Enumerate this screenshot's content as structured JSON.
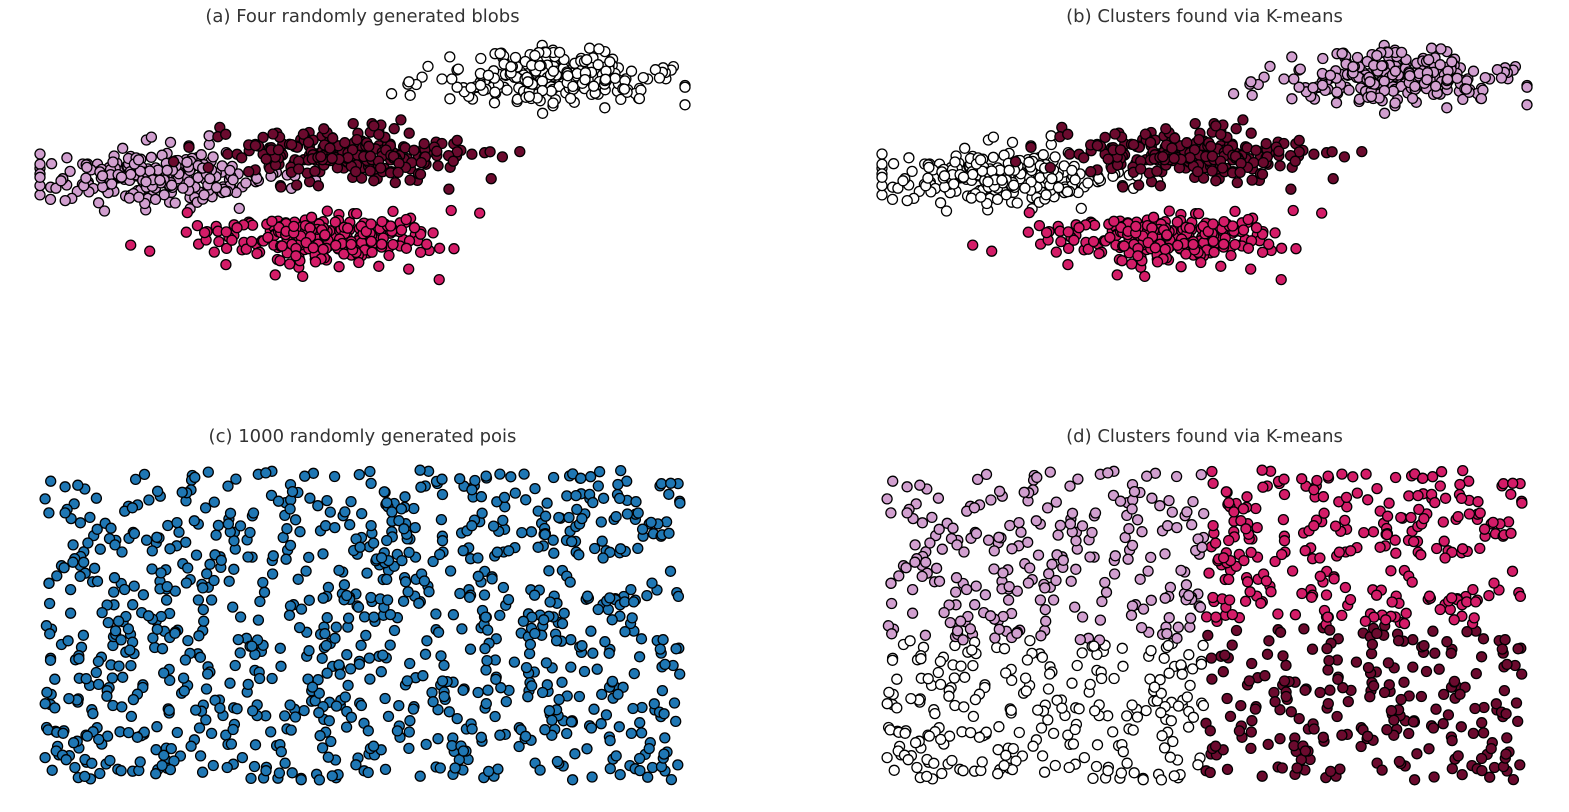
{
  "colors": {
    "white": "#ffffff",
    "pink": "#d19fcf",
    "maroon": "#6b0a2e",
    "magenta": "#d41c68",
    "blue": "#1f77b4",
    "edge": "#000000"
  },
  "chart_data": [
    {
      "type": "scatter",
      "title": "(a) Four randomly generated blobs",
      "grid": false,
      "axes_visible": false,
      "xlim": [
        -3,
        3
      ],
      "ylim": [
        -3,
        3
      ],
      "series": [
        {
          "color": "#ffffff",
          "center": [
            1.7,
            2.3
          ],
          "spread": [
            0.55,
            0.25
          ],
          "count": 250
        },
        {
          "color": "#d19fcf",
          "center": [
            -1.9,
            0.5
          ],
          "spread": [
            0.55,
            0.25
          ],
          "count": 250
        },
        {
          "color": "#6b0a2e",
          "center": [
            -0.1,
            0.9
          ],
          "spread": [
            0.55,
            0.25
          ],
          "count": 250
        },
        {
          "color": "#d41c68",
          "center": [
            -0.4,
            -0.6
          ],
          "spread": [
            0.55,
            0.25
          ],
          "count": 250
        }
      ]
    },
    {
      "type": "scatter",
      "title": "(b) Clusters found via K-means",
      "grid": false,
      "axes_visible": false,
      "xlim": [
        -3,
        3
      ],
      "ylim": [
        -3,
        3
      ],
      "series": [
        {
          "color": "#d19fcf",
          "center": [
            1.7,
            2.3
          ],
          "spread": [
            0.55,
            0.25
          ],
          "count": 250
        },
        {
          "color": "#ffffff",
          "center": [
            -1.9,
            0.5
          ],
          "spread": [
            0.55,
            0.25
          ],
          "count": 250
        },
        {
          "color": "#6b0a2e",
          "center": [
            -0.1,
            0.9
          ],
          "spread": [
            0.55,
            0.25
          ],
          "count": 250
        },
        {
          "color": "#d41c68",
          "center": [
            -0.4,
            -0.6
          ],
          "spread": [
            0.55,
            0.25
          ],
          "count": 250
        }
      ]
    },
    {
      "type": "scatter",
      "title": "(c) 1000 randomly generated pois",
      "grid": false,
      "axes_visible": false,
      "xlim": [
        0,
        1
      ],
      "ylim": [
        0,
        1
      ],
      "points": 1000,
      "distribution": "uniform",
      "color": "#1f77b4"
    },
    {
      "type": "scatter",
      "title": "(d) Clusters found via K-means",
      "grid": false,
      "axes_visible": false,
      "xlim": [
        0,
        1
      ],
      "ylim": [
        0,
        1
      ],
      "points": 1000,
      "distribution": "uniform",
      "quadrant_colors": {
        "top_left": "#d19fcf",
        "top_right": "#d41c68",
        "bottom_left": "#ffffff",
        "bottom_right": "#6b0a2e"
      }
    }
  ]
}
